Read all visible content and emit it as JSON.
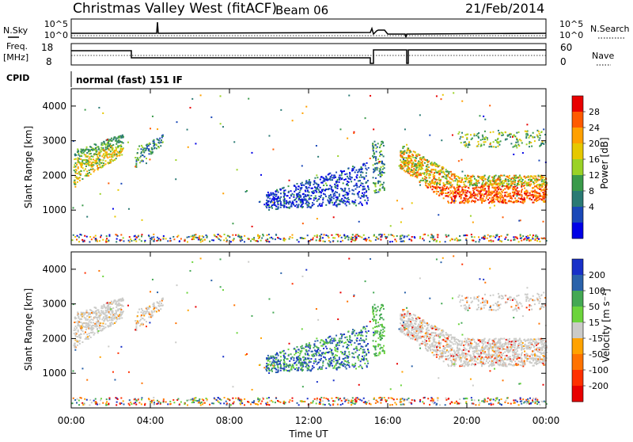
{
  "header": {
    "title": "Christmas Valley West (fitACF)",
    "beam": "Beam 06",
    "date": "21/Feb/2014"
  },
  "params": {
    "nsky_label": "N.Sky",
    "nsky_ticks": [
      "10^5",
      "10^0"
    ],
    "nsearch_label": "N.Search",
    "freq_label": [
      "Freq.",
      "[MHz]"
    ],
    "freq_ticks": [
      "18",
      "8"
    ],
    "nave_ticks": [
      "60",
      "0"
    ],
    "nave_label": "Nave",
    "cpid_label": "CPID",
    "cpid_value": "normal (fast) 151 IF"
  },
  "chart_data": [
    {
      "type": "heatmap",
      "name": "power",
      "ylabel": "Slant Range [km]",
      "yticks": [
        "1000",
        "2000",
        "3000",
        "4000"
      ],
      "ylim": [
        0,
        4500
      ],
      "colorbar_label": "Power [dB]",
      "colorbar_ticks": [
        "28",
        "24",
        "20",
        "16",
        "12",
        "8",
        "4"
      ],
      "colorbar_colors": [
        "#e80000",
        "#ff5a00",
        "#ffa000",
        "#e6c800",
        "#9ad226",
        "#3a9a4a",
        "#2a7a74",
        "#1a48b8",
        "#0000e6"
      ]
    },
    {
      "type": "heatmap",
      "name": "velocity",
      "ylabel": "Slant Range [km]",
      "yticks": [
        "1000",
        "2000",
        "3000",
        "4000"
      ],
      "ylim": [
        0,
        4500
      ],
      "colorbar_label": "Velocity [m s⁻¹]",
      "colorbar_ticks": [
        "200",
        "100",
        "50",
        "15",
        "-15",
        "-50",
        "-100",
        "-200"
      ],
      "colorbar_colors": [
        "#1830c8",
        "#2a62aa",
        "#44a854",
        "#6cd43c",
        "#cbcbc8",
        "#ffa200",
        "#ff7200",
        "#ff3000",
        "#e80000"
      ]
    }
  ],
  "xaxis": {
    "label": "Time UT",
    "ticks": [
      "00:00",
      "04:00",
      "08:00",
      "12:00",
      "16:00",
      "20:00",
      "00:00"
    ]
  }
}
